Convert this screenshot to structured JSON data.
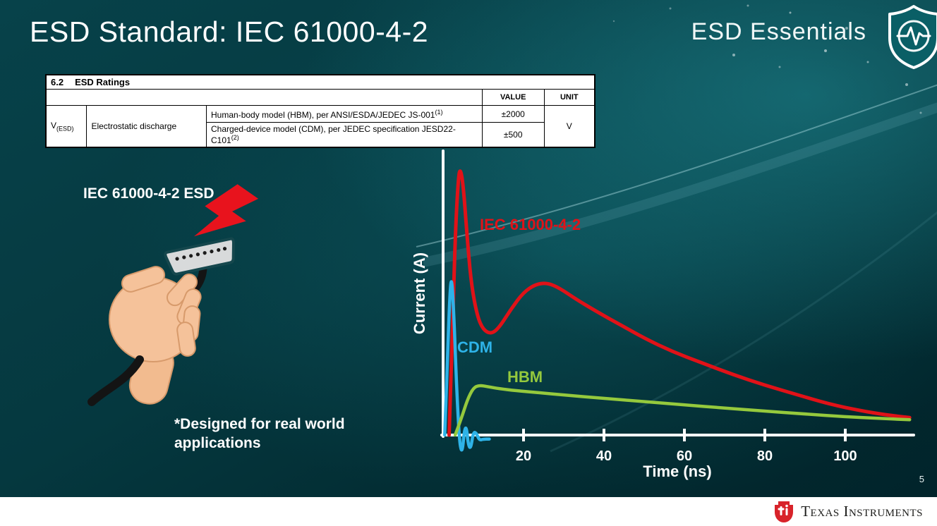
{
  "slide": {
    "title": "ESD Standard: IEC 61000-4-2",
    "series_brand": "ESD Essentials",
    "page_number": "5",
    "footer": {
      "logo_text": "Texas Instruments"
    }
  },
  "ratings_table": {
    "section_number": "6.2",
    "section_title": "ESD Ratings",
    "headers": {
      "value": "VALUE",
      "unit": "UNIT"
    },
    "param": {
      "symbol": "V",
      "symbol_sub": "(ESD)",
      "name": "Electrostatic discharge"
    },
    "rows": [
      {
        "description": "Human-body model (HBM), per ANSI/ESDA/JEDEC JS-001",
        "footnote": "(1)",
        "value": "±2000"
      },
      {
        "description": "Charged-device model (CDM), per JEDEC specification JESD22-C101",
        "footnote": "(2)",
        "value": "±500"
      }
    ],
    "unit": "V"
  },
  "left_panel": {
    "caption": "IEC 61000-4-2 ESD",
    "note": "*Designed for real world\napplications"
  },
  "chart_data": {
    "type": "line",
    "title": "",
    "xlabel": "Time (ns)",
    "ylabel": "Current (A)",
    "xlim": [
      0,
      116
    ],
    "ylim": [
      -0.08,
      1.05
    ],
    "xticks": [
      20,
      40,
      60,
      80,
      100
    ],
    "yticks": [],
    "grid": false,
    "axis_color": "#ffffff",
    "series": [
      {
        "name": "IEC 61000-4-2",
        "color": "#e01218",
        "stroke_width": 5,
        "points": [
          [
            1.5,
            0
          ],
          [
            2.2,
            0.3
          ],
          [
            3.0,
            0.74
          ],
          [
            3.8,
            0.96
          ],
          [
            4.3,
            0.99
          ],
          [
            5.0,
            0.93
          ],
          [
            6.0,
            0.73
          ],
          [
            7.0,
            0.56
          ],
          [
            8.5,
            0.44
          ],
          [
            10,
            0.39
          ],
          [
            12,
            0.375
          ],
          [
            14,
            0.4
          ],
          [
            17,
            0.47
          ],
          [
            20,
            0.53
          ],
          [
            23,
            0.56
          ],
          [
            26,
            0.565
          ],
          [
            29,
            0.545
          ],
          [
            33,
            0.505
          ],
          [
            38,
            0.46
          ],
          [
            44,
            0.41
          ],
          [
            50,
            0.36
          ],
          [
            57,
            0.31
          ],
          [
            64,
            0.27
          ],
          [
            72,
            0.225
          ],
          [
            80,
            0.185
          ],
          [
            88,
            0.15
          ],
          [
            96,
            0.115
          ],
          [
            104,
            0.09
          ],
          [
            110,
            0.075
          ],
          [
            116,
            0.065
          ]
        ]
      },
      {
        "name": "CDM",
        "color": "#2eb3e8",
        "stroke_width": 4.5,
        "points": [
          [
            0.4,
            0
          ],
          [
            1.0,
            0.24
          ],
          [
            1.6,
            0.5
          ],
          [
            2.1,
            0.6
          ],
          [
            2.7,
            0.44
          ],
          [
            3.3,
            0.2
          ],
          [
            3.9,
            0.02
          ],
          [
            4.3,
            -0.05
          ],
          [
            4.8,
            -0.06
          ],
          [
            5.3,
            0.02
          ],
          [
            5.8,
            0.03
          ],
          [
            6.3,
            -0.04
          ],
          [
            6.9,
            -0.05
          ],
          [
            7.5,
            0.01
          ],
          [
            8.2,
            0.01
          ],
          [
            9.0,
            -0.02
          ],
          [
            10,
            -0.015
          ],
          [
            11.5,
            -0.015
          ]
        ]
      },
      {
        "name": "HBM",
        "color": "#95c93d",
        "stroke_width": 4.5,
        "points": [
          [
            3.0,
            0
          ],
          [
            4.5,
            0.06
          ],
          [
            6.0,
            0.13
          ],
          [
            7.5,
            0.175
          ],
          [
            9.0,
            0.185
          ],
          [
            11,
            0.18
          ],
          [
            14,
            0.172
          ],
          [
            18,
            0.165
          ],
          [
            24,
            0.157
          ],
          [
            30,
            0.149
          ],
          [
            40,
            0.136
          ],
          [
            50,
            0.124
          ],
          [
            60,
            0.112
          ],
          [
            70,
            0.1
          ],
          [
            80,
            0.089
          ],
          [
            90,
            0.078
          ],
          [
            100,
            0.068
          ],
          [
            108,
            0.062
          ],
          [
            116,
            0.057
          ]
        ]
      }
    ]
  },
  "icons": {
    "shield": "shield-with-heartbeat-pulse",
    "lightning": "red-esd-lightning-bolt",
    "ti_bug": "texas-instruments-red-logo-mark"
  },
  "colors": {
    "background_teal": "#05383f",
    "iec_red": "#e01218",
    "cdm_cyan": "#2eb3e8",
    "hbm_green": "#95c93d",
    "ti_red": "#d8232a"
  }
}
